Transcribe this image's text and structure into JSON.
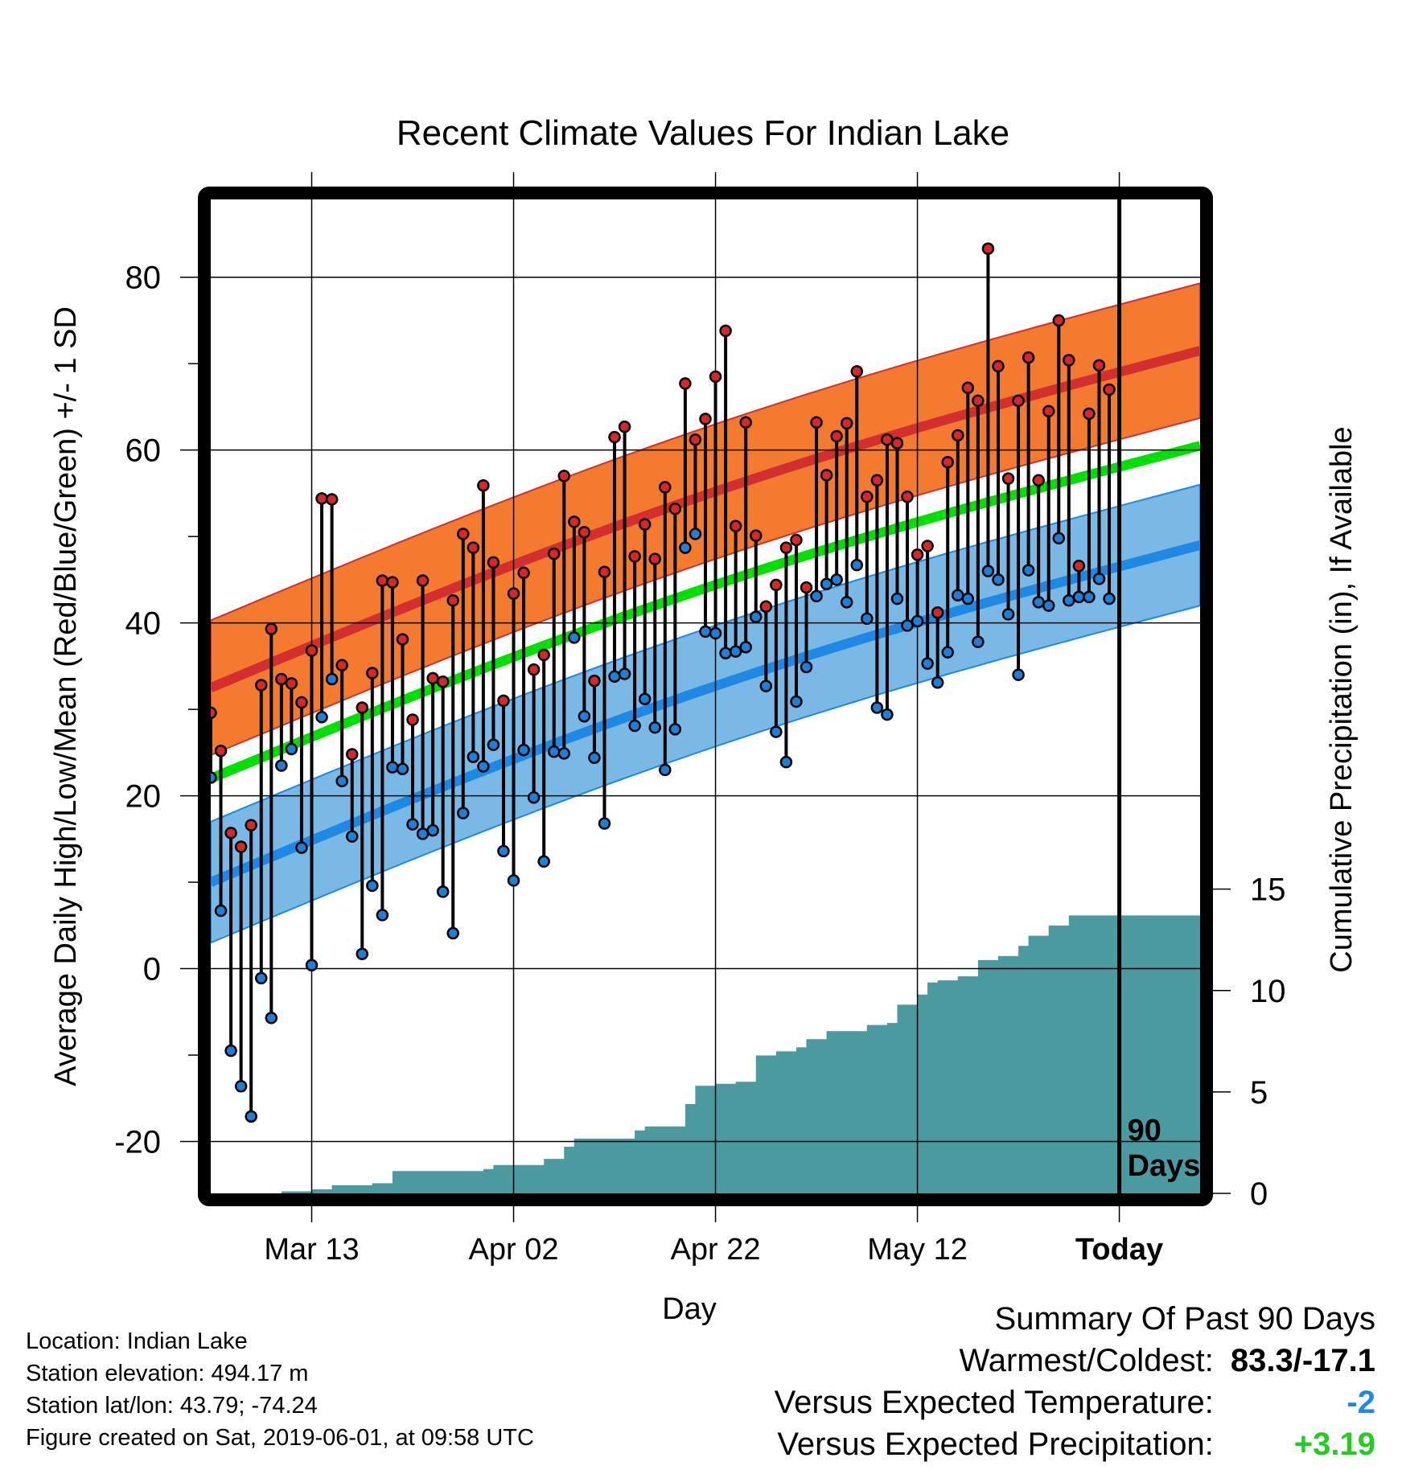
{
  "chart_data": {
    "type": "line",
    "title": "Recent Climate Values For Indian Lake",
    "xlabel": "Day",
    "ylabel": "Average Daily High/Low/Mean (Red/Blue/Green) +/- 1 SD",
    "y2label": "Cumulative Precipitation (in), If Available",
    "x_start": "2019-03-03",
    "x_end": "2019-06-09",
    "today": "2019-06-01",
    "xticks": [
      {
        "date": "2019-03-13",
        "label": "Mar 13",
        "bold": false
      },
      {
        "date": "2019-04-02",
        "label": "Apr 02",
        "bold": false
      },
      {
        "date": "2019-04-22",
        "label": "Apr 22",
        "bold": false
      },
      {
        "date": "2019-05-12",
        "label": "May 12",
        "bold": false
      },
      {
        "date": "2019-06-01",
        "label": "Today",
        "bold": true
      }
    ],
    "ylim": [
      -26,
      89
    ],
    "yticks": [
      -20,
      0,
      20,
      40,
      60,
      80
    ],
    "ytick_labels": [
      "-20",
      "0",
      "20",
      "40",
      "60",
      "80"
    ],
    "y2lim": [
      0,
      49
    ],
    "y2ticks": [
      0,
      5,
      10,
      15
    ],
    "y2tick_labels": [
      "0",
      "5",
      "10",
      "15"
    ],
    "grid": true,
    "today_label": [
      "90",
      "Days"
    ],
    "normals": {
      "dates": [
        "2019-03-03",
        "2019-06-09"
      ],
      "high_mean": [
        32.5,
        71.5
      ],
      "high_sd": 7.8,
      "low_mean": [
        10.0,
        49.0
      ],
      "low_sd": 7.0,
      "mean": [
        22.0,
        60.5
      ]
    },
    "daily": [
      {
        "date": "2019-03-03",
        "high": 29.6,
        "low": 22.1
      },
      {
        "date": "2019-03-04",
        "high": 25.2,
        "low": 6.7
      },
      {
        "date": "2019-03-05",
        "high": 15.7,
        "low": -9.5
      },
      {
        "date": "2019-03-06",
        "high": 14.1,
        "low": -13.6
      },
      {
        "date": "2019-03-07",
        "high": 16.6,
        "low": -17.1
      },
      {
        "date": "2019-03-08",
        "high": 32.8,
        "low": -1.1
      },
      {
        "date": "2019-03-09",
        "high": 39.3,
        "low": -5.7
      },
      {
        "date": "2019-03-10",
        "high": 33.5,
        "low": 23.5
      },
      {
        "date": "2019-03-11",
        "high": 33.0,
        "low": 25.4
      },
      {
        "date": "2019-03-12",
        "high": 30.8,
        "low": 14.0
      },
      {
        "date": "2019-03-13",
        "high": 36.8,
        "low": 0.4
      },
      {
        "date": "2019-03-14",
        "high": 54.4,
        "low": 29.1
      },
      {
        "date": "2019-03-15",
        "high": 54.3,
        "low": 33.5
      },
      {
        "date": "2019-03-16",
        "high": 35.1,
        "low": 21.7
      },
      {
        "date": "2019-03-17",
        "high": 24.8,
        "low": 15.3
      },
      {
        "date": "2019-03-18",
        "high": 30.2,
        "low": 1.7
      },
      {
        "date": "2019-03-19",
        "high": 34.2,
        "low": 9.6
      },
      {
        "date": "2019-03-20",
        "high": 44.9,
        "low": 6.2
      },
      {
        "date": "2019-03-21",
        "high": 44.7,
        "low": 23.3
      },
      {
        "date": "2019-03-22",
        "high": 38.1,
        "low": 23.1
      },
      {
        "date": "2019-03-23",
        "high": 28.8,
        "low": 16.7
      },
      {
        "date": "2019-03-24",
        "high": 44.9,
        "low": 15.6
      },
      {
        "date": "2019-03-25",
        "high": 33.6,
        "low": 16.0
      },
      {
        "date": "2019-03-26",
        "high": 33.2,
        "low": 8.9
      },
      {
        "date": "2019-03-27",
        "high": 42.6,
        "low": 4.1
      },
      {
        "date": "2019-03-28",
        "high": 50.3,
        "low": 18.0
      },
      {
        "date": "2019-03-29",
        "high": 48.7,
        "low": 24.5
      },
      {
        "date": "2019-03-30",
        "high": 55.9,
        "low": 23.4
      },
      {
        "date": "2019-03-31",
        "high": 47.0,
        "low": 25.9
      },
      {
        "date": "2019-04-01",
        "high": 31.0,
        "low": 13.6
      },
      {
        "date": "2019-04-02",
        "high": 43.4,
        "low": 10.2
      },
      {
        "date": "2019-04-03",
        "high": 45.8,
        "low": 25.3
      },
      {
        "date": "2019-04-04",
        "high": 34.6,
        "low": 19.8
      },
      {
        "date": "2019-04-05",
        "high": 36.3,
        "low": 12.4
      },
      {
        "date": "2019-04-06",
        "high": 48.0,
        "low": 25.1
      },
      {
        "date": "2019-04-07",
        "high": 57.0,
        "low": 24.9
      },
      {
        "date": "2019-04-08",
        "high": 51.7,
        "low": 38.3
      },
      {
        "date": "2019-04-09",
        "high": 50.5,
        "low": 29.2
      },
      {
        "date": "2019-04-10",
        "high": 33.3,
        "low": 24.4
      },
      {
        "date": "2019-04-11",
        "high": 45.9,
        "low": 16.8
      },
      {
        "date": "2019-04-12",
        "high": 61.5,
        "low": 33.8
      },
      {
        "date": "2019-04-13",
        "high": 62.7,
        "low": 34.1
      },
      {
        "date": "2019-04-14",
        "high": 47.7,
        "low": 28.1
      },
      {
        "date": "2019-04-15",
        "high": 51.4,
        "low": 31.2
      },
      {
        "date": "2019-04-16",
        "high": 47.4,
        "low": 27.9
      },
      {
        "date": "2019-04-17",
        "high": 55.7,
        "low": 23.0
      },
      {
        "date": "2019-04-18",
        "high": 53.2,
        "low": 27.7
      },
      {
        "date": "2019-04-19",
        "high": 67.7,
        "low": 48.7
      },
      {
        "date": "2019-04-20",
        "high": 61.2,
        "low": 50.3
      },
      {
        "date": "2019-04-21",
        "high": 63.6,
        "low": 39.0
      },
      {
        "date": "2019-04-22",
        "high": 68.5,
        "low": 38.8
      },
      {
        "date": "2019-04-23",
        "high": 73.8,
        "low": 36.5
      },
      {
        "date": "2019-04-24",
        "high": 51.2,
        "low": 36.7
      },
      {
        "date": "2019-04-25",
        "high": 63.2,
        "low": 37.2
      },
      {
        "date": "2019-04-26",
        "high": 50.1,
        "low": 40.7
      },
      {
        "date": "2019-04-27",
        "high": 41.9,
        "low": 32.7
      },
      {
        "date": "2019-04-28",
        "high": 44.4,
        "low": 27.4
      },
      {
        "date": "2019-04-29",
        "high": 48.7,
        "low": 23.9
      },
      {
        "date": "2019-04-30",
        "high": 49.6,
        "low": 30.9
      },
      {
        "date": "2019-05-01",
        "high": 44.1,
        "low": 34.9
      },
      {
        "date": "2019-05-02",
        "high": 63.2,
        "low": 43.1
      },
      {
        "date": "2019-05-03",
        "high": 57.1,
        "low": 44.5
      },
      {
        "date": "2019-05-04",
        "high": 61.6,
        "low": 45.0
      },
      {
        "date": "2019-05-05",
        "high": 63.1,
        "low": 42.4
      },
      {
        "date": "2019-05-06",
        "high": 69.1,
        "low": 46.7
      },
      {
        "date": "2019-05-07",
        "high": 54.6,
        "low": 40.5
      },
      {
        "date": "2019-05-08",
        "high": 56.5,
        "low": 30.2
      },
      {
        "date": "2019-05-09",
        "high": 61.2,
        "low": 29.4
      },
      {
        "date": "2019-05-10",
        "high": 60.8,
        "low": 42.8
      },
      {
        "date": "2019-05-11",
        "high": 54.6,
        "low": 39.7
      },
      {
        "date": "2019-05-12",
        "high": 47.9,
        "low": 40.2
      },
      {
        "date": "2019-05-13",
        "high": 48.9,
        "low": 35.3
      },
      {
        "date": "2019-05-14",
        "high": 41.2,
        "low": 33.1
      },
      {
        "date": "2019-05-15",
        "high": 58.6,
        "low": 36.6
      },
      {
        "date": "2019-05-16",
        "high": 61.7,
        "low": 43.2
      },
      {
        "date": "2019-05-17",
        "high": 67.2,
        "low": 42.8
      },
      {
        "date": "2019-05-18",
        "high": 65.7,
        "low": 37.8
      },
      {
        "date": "2019-05-19",
        "high": 83.3,
        "low": 46.0
      },
      {
        "date": "2019-05-20",
        "high": 69.7,
        "low": 45.0
      },
      {
        "date": "2019-05-21",
        "high": 56.7,
        "low": 41.0
      },
      {
        "date": "2019-05-22",
        "high": 65.7,
        "low": 34.0
      },
      {
        "date": "2019-05-23",
        "high": 70.7,
        "low": 46.1
      },
      {
        "date": "2019-05-24",
        "high": 56.5,
        "low": 42.4
      },
      {
        "date": "2019-05-25",
        "high": 64.5,
        "low": 42.0
      },
      {
        "date": "2019-05-26",
        "high": 75.0,
        "low": 49.8
      },
      {
        "date": "2019-05-27",
        "high": 70.4,
        "low": 42.6
      },
      {
        "date": "2019-05-28",
        "high": 46.6,
        "low": 43.0
      },
      {
        "date": "2019-05-29",
        "high": 64.2,
        "low": 43.0
      },
      {
        "date": "2019-05-30",
        "high": 69.8,
        "low": 45.1
      },
      {
        "date": "2019-05-31",
        "high": 67.0,
        "low": 42.8
      }
    ],
    "cumulative_precip": [
      {
        "date": "2019-03-10",
        "value": 0.1
      },
      {
        "date": "2019-03-13",
        "value": 0.2
      },
      {
        "date": "2019-03-15",
        "value": 0.4
      },
      {
        "date": "2019-03-19",
        "value": 0.5
      },
      {
        "date": "2019-03-21",
        "value": 1.1
      },
      {
        "date": "2019-03-30",
        "value": 1.2
      },
      {
        "date": "2019-03-31",
        "value": 1.4
      },
      {
        "date": "2019-04-05",
        "value": 1.7
      },
      {
        "date": "2019-04-07",
        "value": 2.3
      },
      {
        "date": "2019-04-08",
        "value": 2.7
      },
      {
        "date": "2019-04-13",
        "value": 2.7
      },
      {
        "date": "2019-04-14",
        "value": 3.1
      },
      {
        "date": "2019-04-15",
        "value": 3.3
      },
      {
        "date": "2019-04-18",
        "value": 3.3
      },
      {
        "date": "2019-04-19",
        "value": 4.4
      },
      {
        "date": "2019-04-20",
        "value": 5.3
      },
      {
        "date": "2019-04-22",
        "value": 5.4
      },
      {
        "date": "2019-04-24",
        "value": 5.5
      },
      {
        "date": "2019-04-26",
        "value": 6.8
      },
      {
        "date": "2019-04-28",
        "value": 7.0
      },
      {
        "date": "2019-04-30",
        "value": 7.2
      },
      {
        "date": "2019-05-01",
        "value": 7.6
      },
      {
        "date": "2019-05-03",
        "value": 8.0
      },
      {
        "date": "2019-05-06",
        "value": 8.0
      },
      {
        "date": "2019-05-07",
        "value": 8.3
      },
      {
        "date": "2019-05-09",
        "value": 8.4
      },
      {
        "date": "2019-05-10",
        "value": 9.3
      },
      {
        "date": "2019-05-12",
        "value": 9.8
      },
      {
        "date": "2019-05-13",
        "value": 10.4
      },
      {
        "date": "2019-05-14",
        "value": 10.5
      },
      {
        "date": "2019-05-16",
        "value": 10.7
      },
      {
        "date": "2019-05-18",
        "value": 11.5
      },
      {
        "date": "2019-05-20",
        "value": 11.7
      },
      {
        "date": "2019-05-22",
        "value": 12.2
      },
      {
        "date": "2019-05-23",
        "value": 12.7
      },
      {
        "date": "2019-05-25",
        "value": 13.2
      },
      {
        "date": "2019-05-27",
        "value": 13.7
      },
      {
        "date": "2019-06-09",
        "value": 13.7
      }
    ]
  },
  "info": {
    "location": "Location: Indian Lake",
    "elevation": "Station elevation: 494.17 m",
    "latlon": "Station lat/lon: 43.79; -74.24",
    "created": "Figure created on Sat, 2019-06-01, at 09:58 UTC"
  },
  "summary": {
    "heading": "Summary Of Past 90 Days",
    "warmest_coldest_label": "Warmest/Coldest:",
    "warmest_coldest_value": "83.3/-17.1",
    "temp_label": "Versus Expected Temperature:",
    "temp_value": "-2",
    "precip_label": "Versus Expected Precipitation:",
    "precip_value": "+3.19"
  },
  "colors": {
    "high_band": "#f47a30",
    "high_mean": "#d32f2f",
    "low_band": "#7ab8e6",
    "low_mean": "#1e88e5",
    "mean": "#00e000",
    "precip": "#4a9aa0",
    "high_marker": "#d62828",
    "low_marker": "#1e7fd8",
    "temp_anomaly": "#1e88e5",
    "precip_anomaly": "#22cc22"
  }
}
